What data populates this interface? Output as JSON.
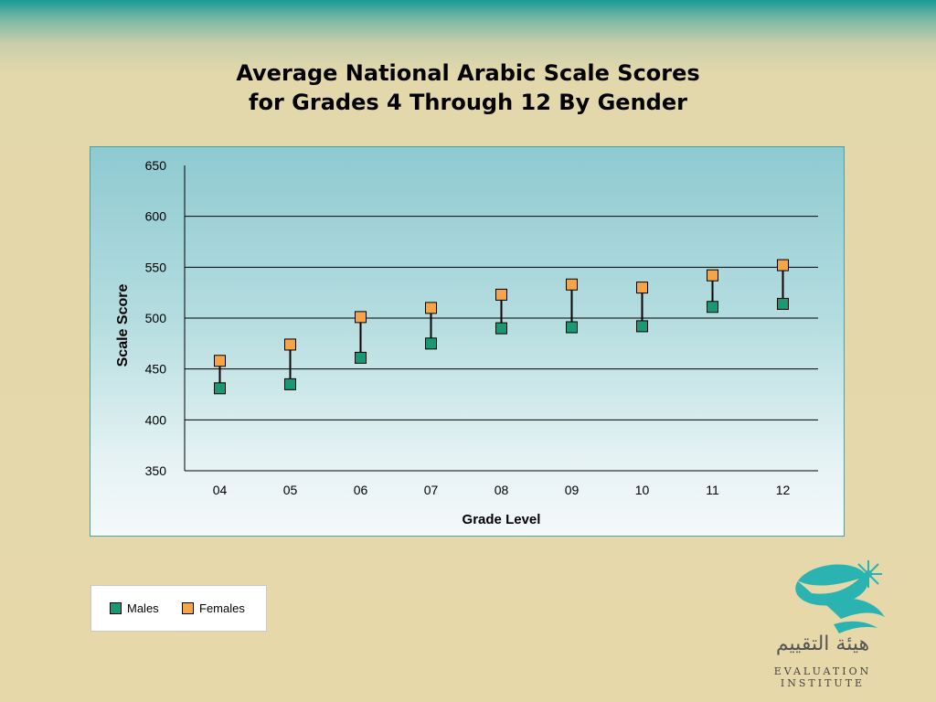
{
  "title": {
    "line1": "Average National Arabic Scale Scores",
    "line2": "for Grades 4 Through 12 By Gender"
  },
  "legend": {
    "males_label": "Males",
    "females_label": "Females"
  },
  "logo": {
    "arabic_name": "هيئة التقييم",
    "english_name": "EVALUATION INSTITUTE"
  },
  "colors": {
    "males": "#1a9873",
    "females": "#f5a447",
    "connector": "#000000",
    "gridline": "#000000"
  },
  "chart_data": {
    "type": "scatter",
    "title": "",
    "xlabel": "Grade Level",
    "ylabel": "Scale Score",
    "categories": [
      "04",
      "05",
      "06",
      "07",
      "08",
      "09",
      "10",
      "11",
      "12"
    ],
    "yticks": [
      350,
      400,
      450,
      500,
      550,
      600,
      650
    ],
    "ylim": [
      350,
      650
    ],
    "grid": true,
    "legend_position": "below-left",
    "connectors": true,
    "series": [
      {
        "name": "Males",
        "color": "#1a9873",
        "values": [
          431,
          435,
          461,
          475,
          490,
          491,
          492,
          511,
          514
        ]
      },
      {
        "name": "Females",
        "color": "#f5a447",
        "values": [
          458,
          474,
          501,
          510,
          523,
          533,
          530,
          542,
          552
        ]
      }
    ]
  }
}
